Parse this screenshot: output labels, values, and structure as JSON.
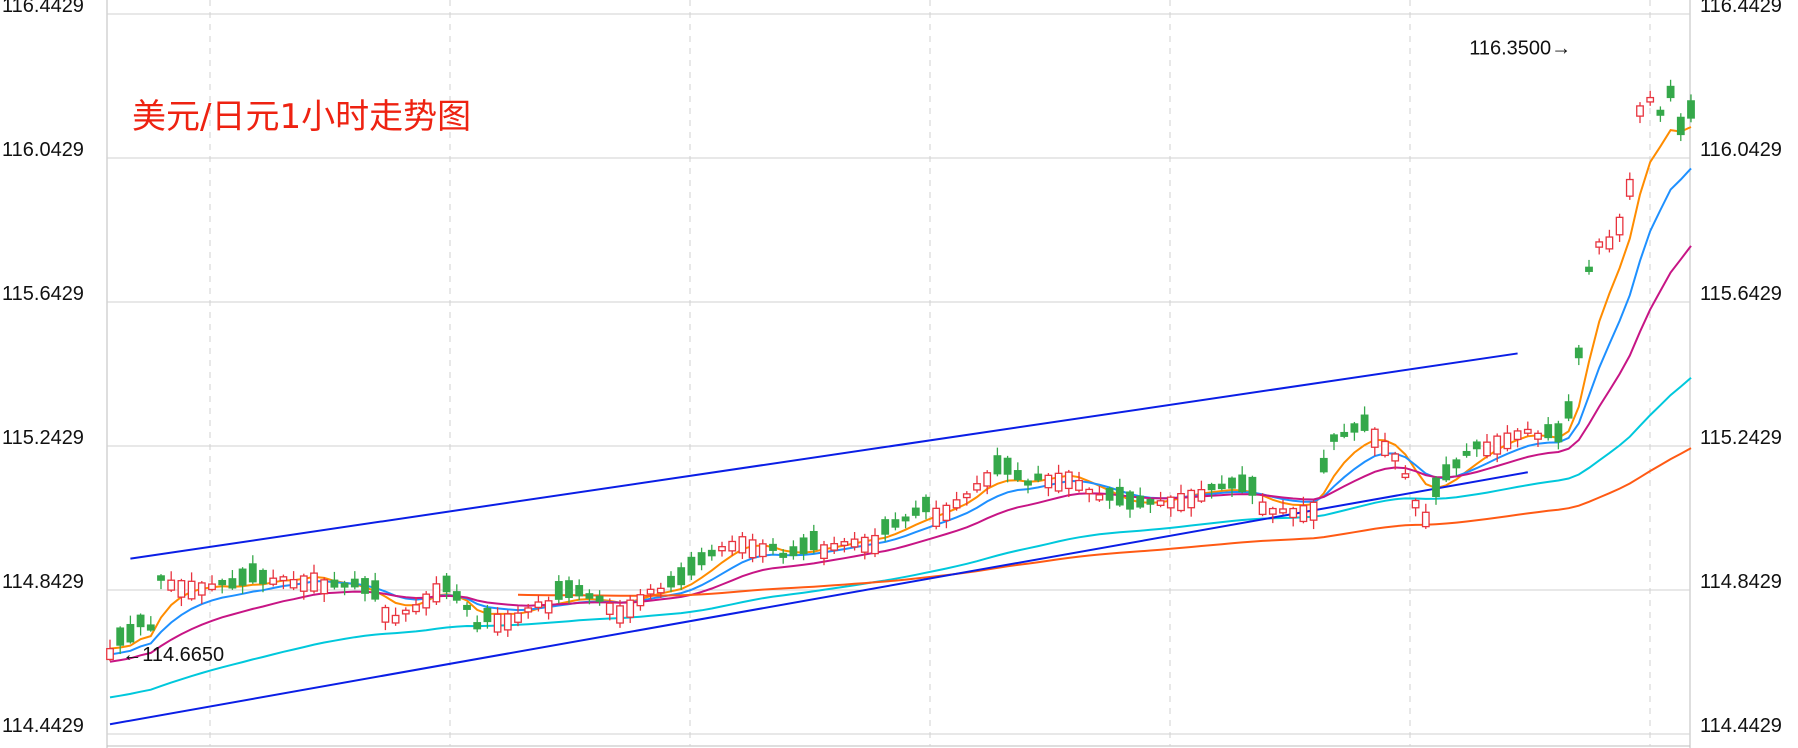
{
  "chart_data": {
    "type": "candlestick",
    "title": "美元/日元1小时走势图",
    "ylim": [
      114.4429,
      116.4429
    ],
    "y_ticks": [
      "116.4429",
      "116.0429",
      "115.6429",
      "115.2429",
      "114.8429",
      "114.4429"
    ],
    "grid": true,
    "annotations": [
      {
        "label": "114.6650",
        "value": 114.665,
        "candle": 1,
        "arrow": "left"
      },
      {
        "label": "116.3500",
        "value": 116.35,
        "candle": 146,
        "arrow": "right"
      }
    ],
    "candles_count": 156,
    "close_anchors": [
      [
        0,
        114.68
      ],
      [
        2,
        114.69
      ],
      [
        3,
        114.73
      ],
      [
        4,
        114.72
      ],
      [
        5,
        114.86
      ],
      [
        8,
        114.87
      ],
      [
        11,
        114.87
      ],
      [
        12,
        114.86
      ],
      [
        14,
        114.87
      ],
      [
        15,
        114.86
      ],
      [
        16,
        114.87
      ],
      [
        17,
        114.87
      ],
      [
        18,
        114.86
      ],
      [
        20,
        114.88
      ],
      [
        22,
        114.85
      ],
      [
        24,
        114.86
      ],
      [
        26,
        114.83
      ],
      [
        28,
        114.78
      ],
      [
        30,
        114.8
      ],
      [
        32,
        114.85
      ],
      [
        35,
        114.78
      ],
      [
        36,
        114.73
      ],
      [
        38,
        114.78
      ],
      [
        40,
        114.79
      ],
      [
        42,
        114.82
      ],
      [
        46,
        114.82
      ],
      [
        48,
        114.8
      ],
      [
        50,
        114.79
      ],
      [
        53,
        114.85
      ],
      [
        56,
        114.87
      ],
      [
        58,
        114.92
      ],
      [
        60,
        114.96
      ],
      [
        62,
        114.98
      ],
      [
        64,
        114.96
      ],
      [
        66,
        114.93
      ],
      [
        68,
        114.95
      ],
      [
        70,
        114.98
      ],
      [
        73,
        114.99
      ],
      [
        76,
        114.99
      ],
      [
        79,
        115.04
      ],
      [
        82,
        115.08
      ],
      [
        84,
        115.12
      ],
      [
        86,
        115.18
      ],
      [
        88,
        115.17
      ],
      [
        90,
        115.13
      ],
      [
        92,
        115.15
      ],
      [
        94,
        115.16
      ],
      [
        96,
        115.12
      ],
      [
        98,
        115.1
      ],
      [
        100,
        115.08
      ],
      [
        102,
        115.09
      ],
      [
        104,
        115.1
      ],
      [
        106,
        115.11
      ],
      [
        108,
        115.11
      ],
      [
        110,
        115.12
      ],
      [
        112,
        115.11
      ],
      [
        114,
        115.08
      ],
      [
        116,
        115.08
      ],
      [
        118,
        115.09
      ],
      [
        120,
        115.25
      ],
      [
        122,
        115.27
      ],
      [
        124,
        115.28
      ],
      [
        126,
        115.22
      ],
      [
        127,
        115.17
      ],
      [
        128,
        115.1
      ],
      [
        129,
        115.07
      ],
      [
        131,
        115.16
      ],
      [
        133,
        115.22
      ],
      [
        136,
        115.26
      ],
      [
        139,
        115.28
      ],
      [
        142,
        115.26
      ],
      [
        143,
        115.33
      ],
      [
        144,
        115.5
      ],
      [
        145,
        115.74
      ],
      [
        146,
        115.82
      ],
      [
        147,
        115.83
      ],
      [
        148,
        115.88
      ],
      [
        149,
        115.98
      ],
      [
        150,
        116.18
      ],
      [
        151,
        116.2
      ],
      [
        152,
        116.15
      ],
      [
        153,
        116.2
      ],
      [
        154,
        116.1
      ],
      [
        155,
        116.15
      ]
    ],
    "moving_averages": [
      {
        "color": "#ff8c00",
        "period": 5
      },
      {
        "color": "#1e90ff",
        "period": 10
      },
      {
        "color": "#c71585",
        "period": 20
      },
      {
        "color": "#00c8dc",
        "period": 60
      },
      {
        "color": "#ff5a14",
        "period": 120
      }
    ],
    "trend_lines": [
      {
        "color": "#0a1ee6",
        "from": [
          2,
          114.93
        ],
        "to": [
          138,
          115.5
        ]
      },
      {
        "color": "#0a1ee6",
        "from": [
          0,
          114.47
        ],
        "to": [
          139,
          115.17
        ]
      }
    ],
    "colors": {
      "up": "#e8333e",
      "down": "#35a84a",
      "grid": "#d2d2d2",
      "axis_text": "#111111",
      "title": "#ee2211"
    }
  }
}
